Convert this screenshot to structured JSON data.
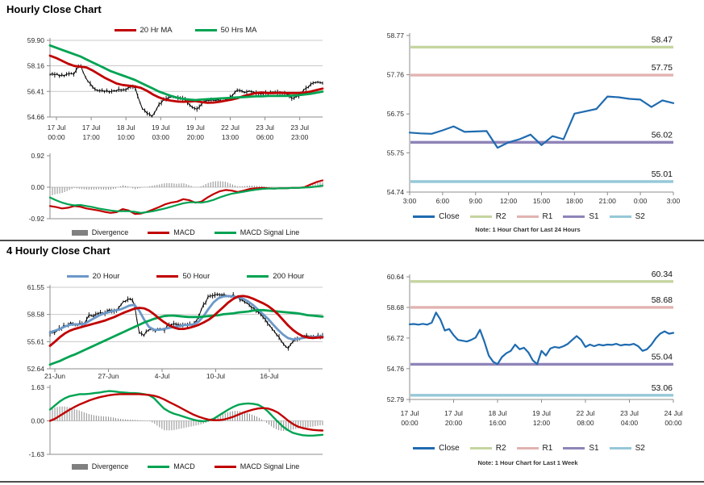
{
  "titles": {
    "hourly": "Hourly Close Chart",
    "four_hourly": "4 Hourly Close Chart"
  },
  "chart_data": [
    {
      "id": "hourly_close",
      "type": "line",
      "ylim": [
        54.66,
        59.9
      ],
      "y_ticks": [
        "59.90",
        "58.16",
        "56.41",
        "54.66"
      ],
      "x_ticks": [
        "17 Jul|00:00",
        "17 Jul|17:00",
        "18 Jul|10:00",
        "19 Jul|03:00",
        "19 Jul|20:00",
        "22 Jul|13:00",
        "23 Jul|06:00",
        "23 Jul|23:00"
      ],
      "series": [
        {
          "name": "Close",
          "style": "ohlc",
          "color": "#000000",
          "values": [
            57.6,
            57.55,
            57.5,
            57.55,
            57.62,
            58.3,
            57.2,
            56.7,
            56.5,
            56.45,
            56.4,
            56.5,
            56.55,
            56.6,
            56.8,
            55.4,
            54.9,
            54.72,
            55.5,
            55.95,
            56.05,
            55.95,
            55.9,
            55.55,
            55.15,
            55.5,
            55.85,
            55.8,
            55.78,
            55.82,
            56.1,
            56.55,
            56.3,
            56.45,
            56.3,
            56.28,
            56.3,
            56.32,
            56.3,
            56.28,
            55.95,
            56.1,
            56.5,
            56.9,
            57.1,
            56.98
          ]
        },
        {
          "name": "20 Hr MA",
          "style": "line",
          "color": "#c00000",
          "values": [
            58.85,
            58.7,
            58.5,
            58.3,
            58.15,
            58.1,
            58.05,
            57.85,
            57.6,
            57.35,
            57.15,
            56.95,
            56.85,
            56.8,
            56.75,
            56.65,
            56.45,
            56.2,
            56.0,
            55.85,
            55.78,
            55.72,
            55.7,
            55.72,
            55.75,
            55.68,
            55.63,
            55.65,
            55.7,
            55.78,
            55.85,
            55.95,
            56.1,
            56.2,
            56.3,
            56.33,
            56.3,
            56.3,
            56.32,
            56.3,
            56.3,
            56.3,
            56.33,
            56.4,
            56.5,
            56.6
          ]
        },
        {
          "name": "50 Hrs MA",
          "style": "line",
          "color": "#00a352",
          "values": [
            59.55,
            59.4,
            59.25,
            59.1,
            58.95,
            58.8,
            58.6,
            58.4,
            58.2,
            58.0,
            57.8,
            57.65,
            57.5,
            57.35,
            57.2,
            57.0,
            56.8,
            56.6,
            56.4,
            56.25,
            56.1,
            55.98,
            55.9,
            55.85,
            55.82,
            55.85,
            55.88,
            55.9,
            55.93,
            55.95,
            55.97,
            56.0,
            56.02,
            56.05,
            56.07,
            56.08,
            56.1,
            56.1,
            56.1,
            56.1,
            56.12,
            56.15,
            56.2,
            56.25,
            56.32,
            56.4
          ]
        }
      ]
    },
    {
      "id": "hourly_macd",
      "type": "line",
      "role": "macd",
      "ylim": [
        -0.92,
        0.92
      ],
      "y_ticks": [
        "0.92",
        "0.00",
        "-0.92"
      ],
      "divergence": {
        "name": "Divergence",
        "color": "#808080",
        "rule": "macd_minus_signal"
      },
      "series": [
        {
          "name": "MACD",
          "style": "line",
          "color": "#c00000",
          "values": [
            -0.55,
            -0.58,
            -0.62,
            -0.6,
            -0.55,
            -0.57,
            -0.62,
            -0.65,
            -0.68,
            -0.72,
            -0.75,
            -0.73,
            -0.64,
            -0.68,
            -0.78,
            -0.77,
            -0.72,
            -0.65,
            -0.58,
            -0.5,
            -0.45,
            -0.42,
            -0.35,
            -0.38,
            -0.45,
            -0.42,
            -0.3,
            -0.2,
            -0.12,
            -0.08,
            -0.1,
            -0.14,
            -0.1,
            -0.05,
            -0.03,
            -0.02,
            -0.03,
            -0.04,
            -0.03,
            -0.03,
            -0.02,
            -0.02,
            0.0,
            0.08,
            0.15,
            0.2
          ]
        },
        {
          "name": "MACD Signal Line",
          "style": "line",
          "color": "#00a352",
          "values": [
            -0.3,
            -0.38,
            -0.45,
            -0.5,
            -0.53,
            -0.52,
            -0.55,
            -0.58,
            -0.62,
            -0.65,
            -0.68,
            -0.7,
            -0.7,
            -0.7,
            -0.72,
            -0.75,
            -0.73,
            -0.7,
            -0.66,
            -0.62,
            -0.57,
            -0.52,
            -0.47,
            -0.44,
            -0.44,
            -0.45,
            -0.42,
            -0.37,
            -0.3,
            -0.24,
            -0.19,
            -0.16,
            -0.13,
            -0.1,
            -0.07,
            -0.05,
            -0.04,
            -0.04,
            -0.03,
            -0.03,
            -0.02,
            -0.02,
            -0.01,
            0.0,
            0.02,
            0.05
          ]
        }
      ]
    },
    {
      "id": "pivot_24h",
      "type": "line",
      "note": "Note: 1 Hour Chart for Last 24 Hours",
      "ylim": [
        54.74,
        58.77
      ],
      "y_ticks": [
        "58.77",
        "57.76",
        "56.75",
        "55.75",
        "54.74"
      ],
      "x_ticks": [
        "3:00",
        "6:00",
        "9:00",
        "12:00",
        "15:00",
        "18:00",
        "21:00",
        "0:00",
        "3:00"
      ],
      "series": [
        {
          "name": "Close",
          "style": "line",
          "color": "#1f6bb0",
          "values": [
            56.27,
            56.25,
            56.24,
            56.33,
            56.43,
            56.29,
            56.3,
            56.31,
            55.88,
            56.02,
            56.1,
            56.22,
            55.95,
            56.18,
            56.1,
            56.76,
            56.82,
            56.88,
            57.2,
            57.18,
            57.14,
            57.12,
            56.93,
            57.1,
            57.03
          ]
        }
      ],
      "levels": [
        {
          "name": "R2",
          "label": "58.47",
          "value": 58.47,
          "color": "#c5d5a0"
        },
        {
          "name": "R1",
          "label": "57.75",
          "value": 57.75,
          "color": "#e1b3b1"
        },
        {
          "name": "S1",
          "label": "56.02",
          "value": 56.02,
          "color": "#8f84b8"
        },
        {
          "name": "S2",
          "label": "55.01",
          "value": 55.01,
          "color": "#96c8d8"
        }
      ]
    },
    {
      "id": "four_hourly_close",
      "type": "line",
      "ylim": [
        52.64,
        61.55
      ],
      "y_ticks": [
        "61.55",
        "58.58",
        "55.61",
        "52.64"
      ],
      "x_ticks": [
        "21-Jun",
        "27-Jun",
        "4-Jul",
        "10-Jul",
        "16-Jul"
      ],
      "series": [
        {
          "name": "Close",
          "style": "ohlc",
          "color": "#000000",
          "values": [
            56.4,
            56.7,
            57.0,
            57.4,
            57.6,
            57.5,
            57.55,
            57.5,
            58.6,
            58.4,
            58.9,
            58.6,
            59.1,
            58.9,
            59.3,
            60.1,
            60.3,
            59.9,
            56.6,
            56.3,
            57.0,
            56.8,
            57.1,
            56.9,
            57.4,
            57.5,
            57.45,
            57.5,
            57.55,
            57.5,
            58.3,
            59.6,
            60.5,
            60.8,
            60.7,
            60.75,
            60.6,
            60.65,
            60.4,
            60.0,
            59.6,
            59.2,
            58.8,
            58.4,
            57.6,
            56.9,
            56.2,
            55.5,
            54.8,
            55.6,
            55.9,
            56.0,
            56.3,
            56.1,
            56.3,
            56.2
          ]
        },
        {
          "name": "20 Hour",
          "style": "line",
          "color": "#6c98c8",
          "values": [
            56.6,
            56.8,
            57.0,
            57.25,
            57.45,
            57.5,
            57.5,
            57.55,
            57.9,
            58.2,
            58.5,
            58.7,
            58.85,
            59.0,
            59.1,
            59.3,
            59.55,
            59.65,
            59.0,
            58.0,
            57.2,
            56.9,
            56.9,
            57.0,
            57.1,
            57.2,
            57.3,
            57.4,
            57.45,
            57.5,
            57.8,
            58.4,
            59.2,
            59.9,
            60.35,
            60.55,
            60.6,
            60.55,
            60.45,
            60.3,
            60.0,
            59.6,
            59.1,
            58.6,
            58.1,
            57.5,
            56.9,
            56.4,
            56.0,
            55.85,
            55.9,
            56.0,
            56.1,
            56.1,
            56.15,
            56.2
          ]
        },
        {
          "name": "50 Hour",
          "style": "line",
          "color": "#c00000",
          "values": [
            55.15,
            55.6,
            56.1,
            56.5,
            56.8,
            57.0,
            57.15,
            57.3,
            57.45,
            57.6,
            57.75,
            57.9,
            58.1,
            58.3,
            58.55,
            58.8,
            59.0,
            59.2,
            59.3,
            59.25,
            59.0,
            58.6,
            58.15,
            57.75,
            57.4,
            57.15,
            57.0,
            57.0,
            57.1,
            57.25,
            57.45,
            57.7,
            58.0,
            58.4,
            58.9,
            59.4,
            59.9,
            60.3,
            60.55,
            60.6,
            60.5,
            60.3,
            60.05,
            59.8,
            59.5,
            59.1,
            58.6,
            58.0,
            57.4,
            56.9,
            56.5,
            56.2,
            56.05,
            56.0,
            56.05,
            56.1
          ]
        },
        {
          "name": "200 Hour",
          "style": "line",
          "color": "#00a352",
          "values": [
            53.1,
            53.3,
            53.5,
            53.75,
            54.0,
            54.2,
            54.45,
            54.7,
            54.95,
            55.2,
            55.45,
            55.7,
            55.95,
            56.2,
            56.45,
            56.7,
            56.95,
            57.2,
            57.45,
            57.7,
            57.9,
            58.1,
            58.25,
            58.4,
            58.45,
            58.45,
            58.4,
            58.35,
            58.3,
            58.3,
            58.3,
            58.35,
            58.4,
            58.45,
            58.5,
            58.6,
            58.65,
            58.7,
            58.8,
            58.85,
            58.9,
            59.0,
            59.05,
            59.05,
            59.0,
            58.95,
            58.9,
            58.85,
            58.8,
            58.75,
            58.7,
            58.6,
            58.5,
            58.45,
            58.4,
            58.35
          ]
        }
      ]
    },
    {
      "id": "four_hourly_macd",
      "type": "line",
      "role": "macd",
      "ylim": [
        -1.63,
        1.63
      ],
      "y_ticks": [
        "1.63",
        "0.00",
        "-1.63"
      ],
      "divergence": {
        "name": "Divergence",
        "color": "#808080",
        "rule": "macd_minus_signal"
      },
      "series": [
        {
          "name": "MACD",
          "style": "line",
          "color": "#00a352",
          "values": [
            0.55,
            0.75,
            0.95,
            1.1,
            1.2,
            1.25,
            1.3,
            1.3,
            1.32,
            1.35,
            1.38,
            1.42,
            1.45,
            1.43,
            1.4,
            1.38,
            1.36,
            1.35,
            1.33,
            1.3,
            1.25,
            1.1,
            0.85,
            0.6,
            0.45,
            0.35,
            0.28,
            0.2,
            0.12,
            0.05,
            0.0,
            -0.02,
            0.02,
            0.1,
            0.25,
            0.4,
            0.55,
            0.68,
            0.78,
            0.83,
            0.85,
            0.83,
            0.78,
            0.65,
            0.45,
            0.2,
            -0.05,
            -0.28,
            -0.45,
            -0.58,
            -0.65,
            -0.7,
            -0.72,
            -0.72,
            -0.7,
            -0.68
          ]
        },
        {
          "name": "MACD Signal Line",
          "style": "line",
          "color": "#c00000",
          "values": [
            0.0,
            0.1,
            0.25,
            0.4,
            0.55,
            0.68,
            0.8,
            0.9,
            1.0,
            1.08,
            1.15,
            1.2,
            1.25,
            1.28,
            1.3,
            1.3,
            1.3,
            1.3,
            1.3,
            1.28,
            1.26,
            1.22,
            1.15,
            1.05,
            0.92,
            0.8,
            0.68,
            0.55,
            0.42,
            0.3,
            0.2,
            0.12,
            0.06,
            0.03,
            0.03,
            0.06,
            0.12,
            0.2,
            0.3,
            0.4,
            0.48,
            0.55,
            0.6,
            0.62,
            0.6,
            0.52,
            0.4,
            0.22,
            0.02,
            -0.15,
            -0.28,
            -0.35,
            -0.4,
            -0.44,
            -0.46,
            -0.47
          ]
        }
      ]
    },
    {
      "id": "pivot_1w",
      "type": "line",
      "note": "Note: 1 Hour Chart for Last 1 Week",
      "ylim": [
        52.79,
        60.64
      ],
      "y_ticks": [
        "60.64",
        "58.68",
        "56.72",
        "54.76",
        "52.79"
      ],
      "x_ticks": [
        "17 Jul|00:00",
        "17 Jul|20:00",
        "18 Jul|16:00",
        "19 Jul|12:00",
        "22 Jul|08:00",
        "23 Jul|04:00",
        "24 Jul|00:00"
      ],
      "series": [
        {
          "name": "Close",
          "style": "line",
          "color": "#1f6bb0",
          "values": [
            57.6,
            57.62,
            57.58,
            57.63,
            57.58,
            57.7,
            58.35,
            57.9,
            57.2,
            57.3,
            56.9,
            56.6,
            56.55,
            56.5,
            56.6,
            56.75,
            57.25,
            56.5,
            55.6,
            55.2,
            55.05,
            55.5,
            55.75,
            55.9,
            56.3,
            56.0,
            56.1,
            55.8,
            55.3,
            55.05,
            55.9,
            55.6,
            56.05,
            56.15,
            56.1,
            56.2,
            56.35,
            56.6,
            56.85,
            56.6,
            56.15,
            56.3,
            56.2,
            56.3,
            56.25,
            56.3,
            56.28,
            56.35,
            56.25,
            56.3,
            56.28,
            56.35,
            56.2,
            55.9,
            56.0,
            56.3,
            56.7,
            57.0,
            57.15,
            57.0,
            57.05
          ]
        }
      ],
      "levels": [
        {
          "name": "R2",
          "label": "60.34",
          "value": 60.34,
          "color": "#c5d5a0"
        },
        {
          "name": "R1",
          "label": "58.68",
          "value": 58.68,
          "color": "#e1b3b1"
        },
        {
          "name": "S1",
          "label": "55.04",
          "value": 55.04,
          "color": "#8f84b8"
        },
        {
          "name": "S2",
          "label": "53.06",
          "value": 53.06,
          "color": "#96c8d8"
        }
      ]
    }
  ]
}
